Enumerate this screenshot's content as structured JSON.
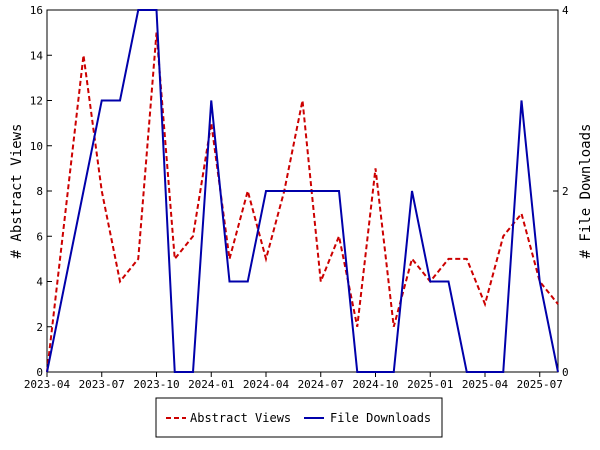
{
  "chart_data": {
    "type": "line",
    "title": "",
    "xlabel": "",
    "ylabel": "# Abstract Views",
    "y2label": "# File Downloads",
    "x": [
      "2023-04",
      "2023-05",
      "2023-06",
      "2023-07",
      "2023-08",
      "2023-09",
      "2023-10",
      "2023-11",
      "2023-12",
      "2024-01",
      "2024-02",
      "2024-03",
      "2024-04",
      "2024-05",
      "2024-06",
      "2024-07",
      "2024-08",
      "2024-09",
      "2024-10",
      "2024-11",
      "2024-12",
      "2025-01",
      "2025-02",
      "2025-03",
      "2025-04",
      "2025-05",
      "2025-06",
      "2025-07",
      "2025-08"
    ],
    "x_tick_labels": [
      "2023-04",
      "2023-07",
      "2023-10",
      "2024-01",
      "2024-04",
      "2024-07",
      "2024-10",
      "2025-01",
      "2025-04",
      "2025-07"
    ],
    "ylim": [
      0,
      16
    ],
    "y_ticks": [
      "0",
      "2",
      "4",
      "6",
      "8",
      "10",
      "12",
      "14",
      "16"
    ],
    "y2lim": [
      0,
      4
    ],
    "y2_ticks": [
      "0",
      "2",
      "4"
    ],
    "grid": false,
    "legend_position": "bottom",
    "series": [
      {
        "name": "Abstract Views",
        "axis": "left",
        "color": "#cc0000",
        "style": "dashed",
        "values": [
          0,
          7,
          14,
          8,
          4,
          5,
          15,
          5,
          6,
          11,
          5,
          8,
          5,
          8,
          12,
          4,
          6,
          2,
          9,
          2,
          5,
          4,
          5,
          5,
          3,
          6,
          7,
          4,
          3
        ]
      },
      {
        "name": "File Downloads",
        "axis": "right",
        "color": "#0000aa",
        "style": "solid",
        "values": [
          0,
          1,
          2,
          3,
          3,
          4,
          4,
          0,
          0,
          3,
          1,
          1,
          2,
          2,
          2,
          2,
          2,
          0,
          0,
          0,
          2,
          1,
          1,
          0,
          0,
          0,
          3,
          1,
          0
        ]
      }
    ]
  }
}
